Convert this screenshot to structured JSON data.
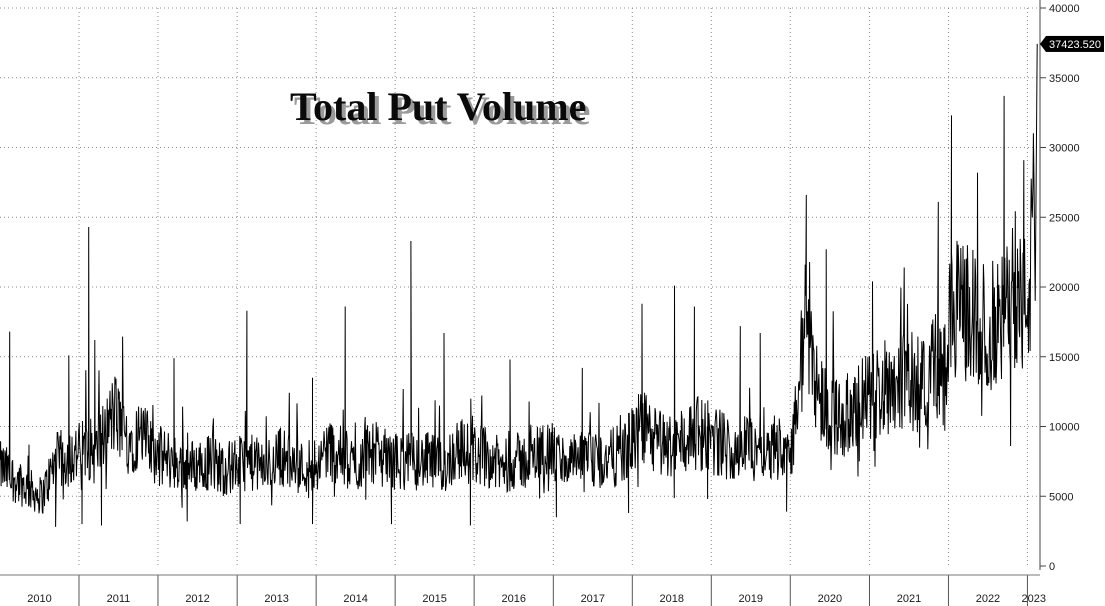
{
  "chart_data": {
    "type": "line",
    "title": "Total Put Volume",
    "xlabel": "",
    "ylabel": "",
    "x_range": [
      "2010-01-01",
      "2023-02-28"
    ],
    "ylim": [
      0,
      40000
    ],
    "y_ticks": [
      0,
      5000,
      10000,
      15000,
      20000,
      25000,
      30000,
      35000,
      40000
    ],
    "y_tick_labels": [
      "0",
      "5000",
      "10000",
      "15000",
      "20000",
      "25000",
      "30000",
      "35000",
      "40000"
    ],
    "x_tick_labels": [
      "2010",
      "2011",
      "2012",
      "2013",
      "2014",
      "2015",
      "2016",
      "2017",
      "2018",
      "2019",
      "2020",
      "2021",
      "2022",
      "2023"
    ],
    "y_axis_position": "right",
    "grid": true,
    "line_color": "#000000",
    "last_value_label": "37423.520",
    "series": [
      {
        "x": [
          "2010-01",
          "2010-02",
          "2010-05",
          "2010-07",
          "2010-09",
          "2010-12",
          "2011-02",
          "2011-03",
          "2011-06",
          "2011-08",
          "2011-10",
          "2011-12",
          "2012-03",
          "2012-05",
          "2012-08",
          "2012-11",
          "2013-02",
          "2013-05",
          "2013-07",
          "2013-10",
          "2014-01",
          "2014-02",
          "2014-04",
          "2014-07",
          "2014-08",
          "2014-10",
          "2014-12",
          "2015-03",
          "2015-06",
          "2015-08",
          "2015-10",
          "2015-12",
          "2016-02",
          "2016-05",
          "2016-06",
          "2016-09",
          "2016-11",
          "2017-02",
          "2017-05",
          "2017-08",
          "2017-11",
          "2018-02",
          "2018-04",
          "2018-07",
          "2018-10",
          "2018-12",
          "2019-03",
          "2019-05",
          "2019-08",
          "2019-11",
          "2020-01",
          "2020-03",
          "2020-05",
          "2020-08",
          "2020-10",
          "2020-12",
          "2021-02",
          "2021-05",
          "2021-08",
          "2021-10",
          "2021-12",
          "2022-01",
          "2022-03",
          "2022-06",
          "2022-09",
          "2022-10",
          "2022-12",
          "2023-01",
          "2023-02"
        ],
        "values": [
          7000,
          6500,
          5500,
          5000,
          7500,
          8000,
          8500,
          8000,
          11000,
          9000,
          9500,
          8000,
          7500,
          7000,
          7500,
          7000,
          7500,
          7000,
          8000,
          7000,
          7500,
          8500,
          8000,
          7000,
          8500,
          8000,
          7500,
          7500,
          7500,
          7000,
          8500,
          8000,
          8000,
          7000,
          7500,
          7500,
          8500,
          7500,
          7500,
          7500,
          8000,
          10000,
          9000,
          8500,
          9500,
          9500,
          8500,
          8500,
          9000,
          8500,
          9000,
          18000,
          12000,
          10500,
          11000,
          12000,
          12500,
          13500,
          13000,
          14500,
          14000,
          18000,
          18500,
          17000,
          17500,
          20000,
          18500,
          20000,
          37423.52
        ],
        "peaks": [
          [
            "2010-02",
            16800
          ],
          [
            "2010-05",
            8700
          ],
          [
            "2010-11",
            15100
          ],
          [
            "2011-02",
            24300
          ],
          [
            "2011-03",
            16200
          ],
          [
            "2012-03",
            14900
          ],
          [
            "2013-02",
            18300
          ],
          [
            "2013-12",
            13500
          ],
          [
            "2014-05",
            18600
          ],
          [
            "2015-03",
            23300
          ],
          [
            "2015-08",
            16700
          ],
          [
            "2016-06",
            14800
          ],
          [
            "2017-05",
            14200
          ],
          [
            "2018-02",
            18800
          ],
          [
            "2018-07",
            20100
          ],
          [
            "2018-10",
            18600
          ],
          [
            "2019-05",
            17200
          ],
          [
            "2019-08",
            16700
          ],
          [
            "2020-03",
            26600
          ],
          [
            "2020-06",
            22700
          ],
          [
            "2021-01",
            20400
          ],
          [
            "2021-11",
            26100
          ],
          [
            "2022-01",
            32300
          ],
          [
            "2022-05",
            28200
          ],
          [
            "2022-09",
            33700
          ],
          [
            "2022-12",
            29100
          ],
          [
            "2023-02",
            37423.52
          ]
        ],
        "troughs": [
          [
            "2010-09",
            2800
          ],
          [
            "2011-01",
            3000
          ],
          [
            "2011-04",
            2900
          ],
          [
            "2012-05",
            3200
          ],
          [
            "2013-01",
            3000
          ],
          [
            "2013-12",
            3000
          ],
          [
            "2014-12",
            3000
          ],
          [
            "2015-12",
            2900
          ],
          [
            "2017-01",
            3500
          ],
          [
            "2017-12",
            3800
          ],
          [
            "2018-12",
            4800
          ],
          [
            "2019-12",
            3900
          ],
          [
            "2020-11",
            7500
          ],
          [
            "2021-12",
            9700
          ],
          [
            "2022-10",
            8600
          ]
        ]
      }
    ]
  }
}
